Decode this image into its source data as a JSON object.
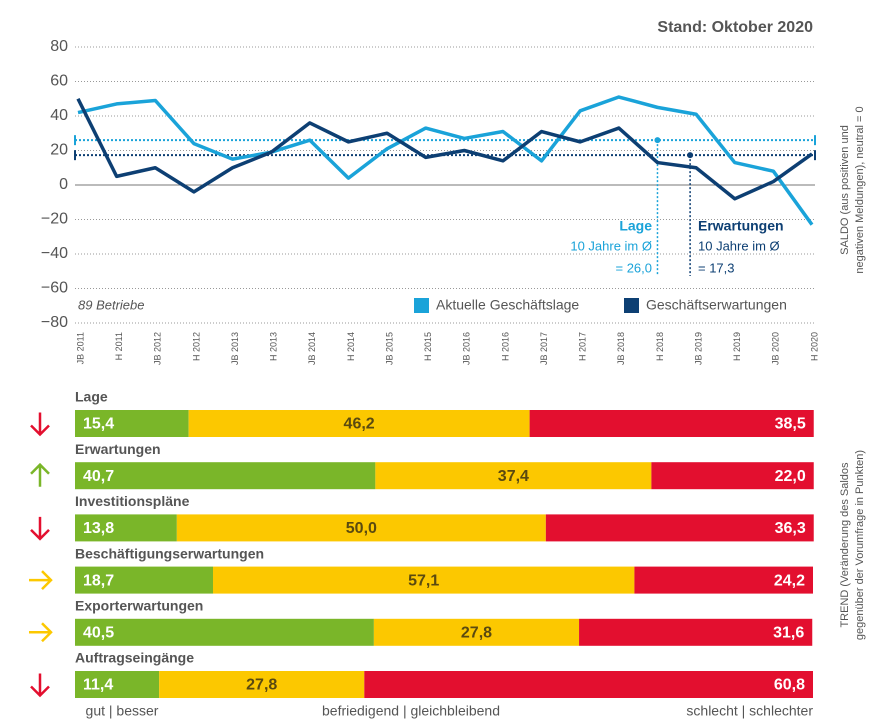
{
  "chart_data": [
    {
      "type": "line",
      "title": "Stand: Oktober 2020",
      "annotation": "89 Betriebe",
      "y_label": [
        "SALDO (aus positiven und",
        "negativen Meldungen), neutral = 0"
      ],
      "categories": [
        "JB 2011",
        "H 2011",
        "JB 2012",
        "H 2012",
        "JB 2013",
        "H 2013",
        "JB 2014",
        "H 2014",
        "JB 2015",
        "H 2015",
        "JB 2016",
        "H 2016",
        "JB 2017",
        "H 2017",
        "JB 2018",
        "H 2018",
        "JB 2019",
        "H 2019",
        "JB 2020",
        "H 2020"
      ],
      "series": [
        {
          "name": "Aktuelle Geschäftslage",
          "color": "#1aa3d9",
          "values": [
            42,
            47,
            49,
            24,
            15,
            19,
            26,
            4,
            21,
            33,
            27,
            31,
            14,
            43,
            51,
            45,
            41,
            13,
            8,
            -23
          ]
        },
        {
          "name": "Geschäftserwartungen",
          "color": "#0d3f73",
          "values": [
            50,
            5,
            10,
            -4,
            10,
            19,
            36,
            25,
            30,
            16,
            20,
            14,
            31,
            25,
            33,
            13,
            10,
            -8,
            2,
            18
          ]
        }
      ],
      "ref_lines": [
        {
          "name": "Lage",
          "label": "10 Jahre im Ø",
          "value": 26.0,
          "value_label": "= 26,0",
          "color": "#1aa3d9"
        },
        {
          "name": "Erwartungen",
          "label": "10 Jahre im Ø",
          "value": 17.3,
          "value_label": "= 17,3",
          "color": "#0d3f73"
        }
      ],
      "ylim": [
        -80,
        80
      ],
      "yticks": [
        80,
        60,
        40,
        20,
        0,
        {
          "value": -20,
          "label": "−20"
        },
        {
          "value": -40,
          "label": "−40"
        },
        {
          "value": -60,
          "label": "−60"
        },
        {
          "value": -80,
          "label": "−80"
        }
      ],
      "grid": true,
      "legend": "bottom-right"
    },
    {
      "type": "stacked-bar-horizontal",
      "y_label": [
        "TREND (Veränderung des Saldos",
        "gegenüber der Vorumfrage in Punkten)"
      ],
      "categories": [
        "Lage",
        "Erwartungen",
        "Investitionspläne",
        "Beschäftigungserwartungen",
        "Exporterwartungen",
        "Auftragseingänge"
      ],
      "trend": [
        "down",
        "up",
        "down",
        "right",
        "right",
        "down"
      ],
      "series": [
        {
          "name": "gut | besser",
          "color": "#7ab629",
          "values": [
            15.4,
            40.7,
            13.8,
            18.7,
            40.5,
            11.4
          ],
          "value_labels": [
            "15,4",
            "40,7",
            "13,8",
            "18,7",
            "40,5",
            "11,4"
          ]
        },
        {
          "name": "befriedigend | gleichbleibend",
          "color": "#fcc800",
          "values": [
            46.2,
            37.4,
            50.0,
            57.1,
            27.8,
            27.8
          ],
          "value_labels": [
            "46,2",
            "37,4",
            "50,0",
            "57,1",
            "27,8",
            "27,8"
          ]
        },
        {
          "name": "schlecht | schlechter",
          "color": "#e30f2f",
          "values": [
            38.5,
            22.0,
            36.3,
            24.2,
            31.6,
            60.8
          ],
          "value_labels": [
            "38,5",
            "22,0",
            "36,3",
            "24,2",
            "31,6",
            "60,8"
          ]
        }
      ],
      "xlim": [
        0,
        100
      ]
    }
  ]
}
